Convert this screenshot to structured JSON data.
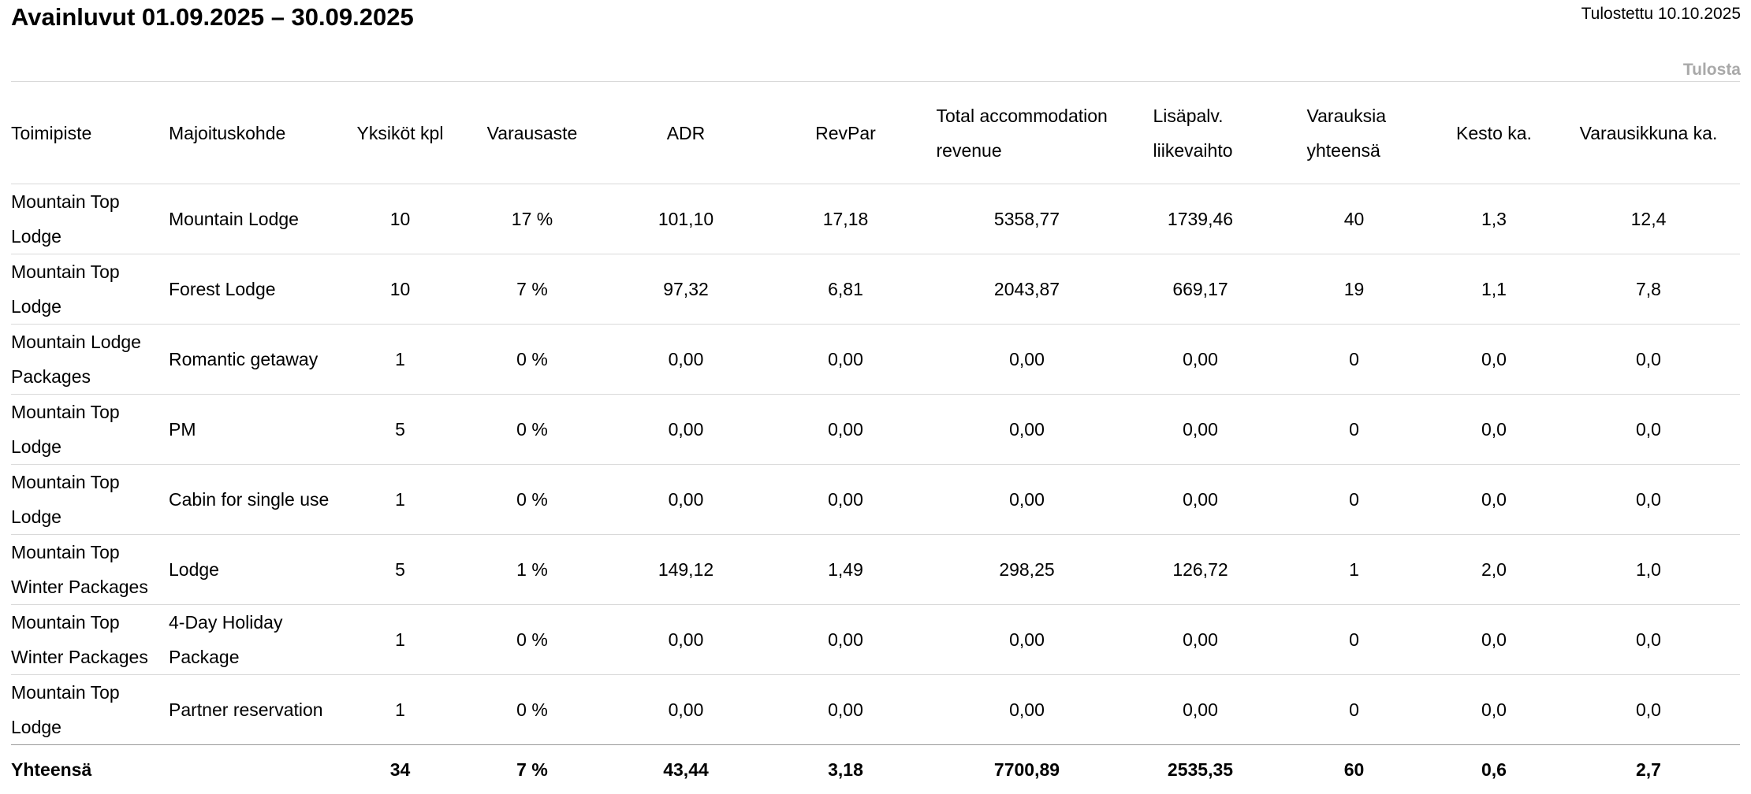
{
  "page": {
    "title": "Avainluvut 01.09.2025 – 30.09.2025",
    "printed_label": "Tulostettu 10.10.2025",
    "print_label": "Tulosta"
  },
  "colors": {
    "row_divider": "#d9d9d9",
    "summary_divider": "#999999",
    "print_link_gray": "#a9a9a9",
    "text": "#000000"
  },
  "table": {
    "headers": [
      "Toimipiste",
      "Majoituskohde",
      "Yksiköt kpl",
      "Varausaste",
      "ADR",
      "RevPar",
      "Total accommodation revenue",
      "Lisäpalv. liikevaihto",
      "Varauksia yhteensä",
      "Kesto ka.",
      "Varausikkuna ka."
    ],
    "rows": [
      [
        "Mountain Top Lodge",
        "Mountain Lodge",
        "10",
        "17 %",
        "101,10",
        "17,18",
        "5358,77",
        "1739,46",
        "40",
        "1,3",
        "12,4"
      ],
      [
        "Mountain Top Lodge",
        "Forest Lodge",
        "10",
        "7 %",
        "97,32",
        "6,81",
        "2043,87",
        "669,17",
        "19",
        "1,1",
        "7,8"
      ],
      [
        "Mountain Lodge Packages",
        "Romantic getaway",
        "1",
        "0 %",
        "0,00",
        "0,00",
        "0,00",
        "0,00",
        "0",
        "0,0",
        "0,0"
      ],
      [
        "Mountain Top Lodge",
        "PM",
        "5",
        "0 %",
        "0,00",
        "0,00",
        "0,00",
        "0,00",
        "0",
        "0,0",
        "0,0"
      ],
      [
        "Mountain Top Lodge",
        "Cabin for single use",
        "1",
        "0 %",
        "0,00",
        "0,00",
        "0,00",
        "0,00",
        "0",
        "0,0",
        "0,0"
      ],
      [
        "Mountain Top Winter Packages",
        "Lodge",
        "5",
        "1 %",
        "149,12",
        "1,49",
        "298,25",
        "126,72",
        "1",
        "2,0",
        "1,0"
      ],
      [
        "Mountain Top Winter Packages",
        "4-Day Holiday Package",
        "1",
        "0 %",
        "0,00",
        "0,00",
        "0,00",
        "0,00",
        "0",
        "0,0",
        "0,0"
      ],
      [
        "Mountain Top Lodge",
        "Partner reservation",
        "1",
        "0 %",
        "0,00",
        "0,00",
        "0,00",
        "0,00",
        "0",
        "0,0",
        "0,0"
      ]
    ],
    "summary": [
      "Yhteensä",
      "",
      "34",
      "7 %",
      "43,44",
      "3,18",
      "7700,89",
      "2535,35",
      "60",
      "0,6",
      "2,7"
    ]
  }
}
